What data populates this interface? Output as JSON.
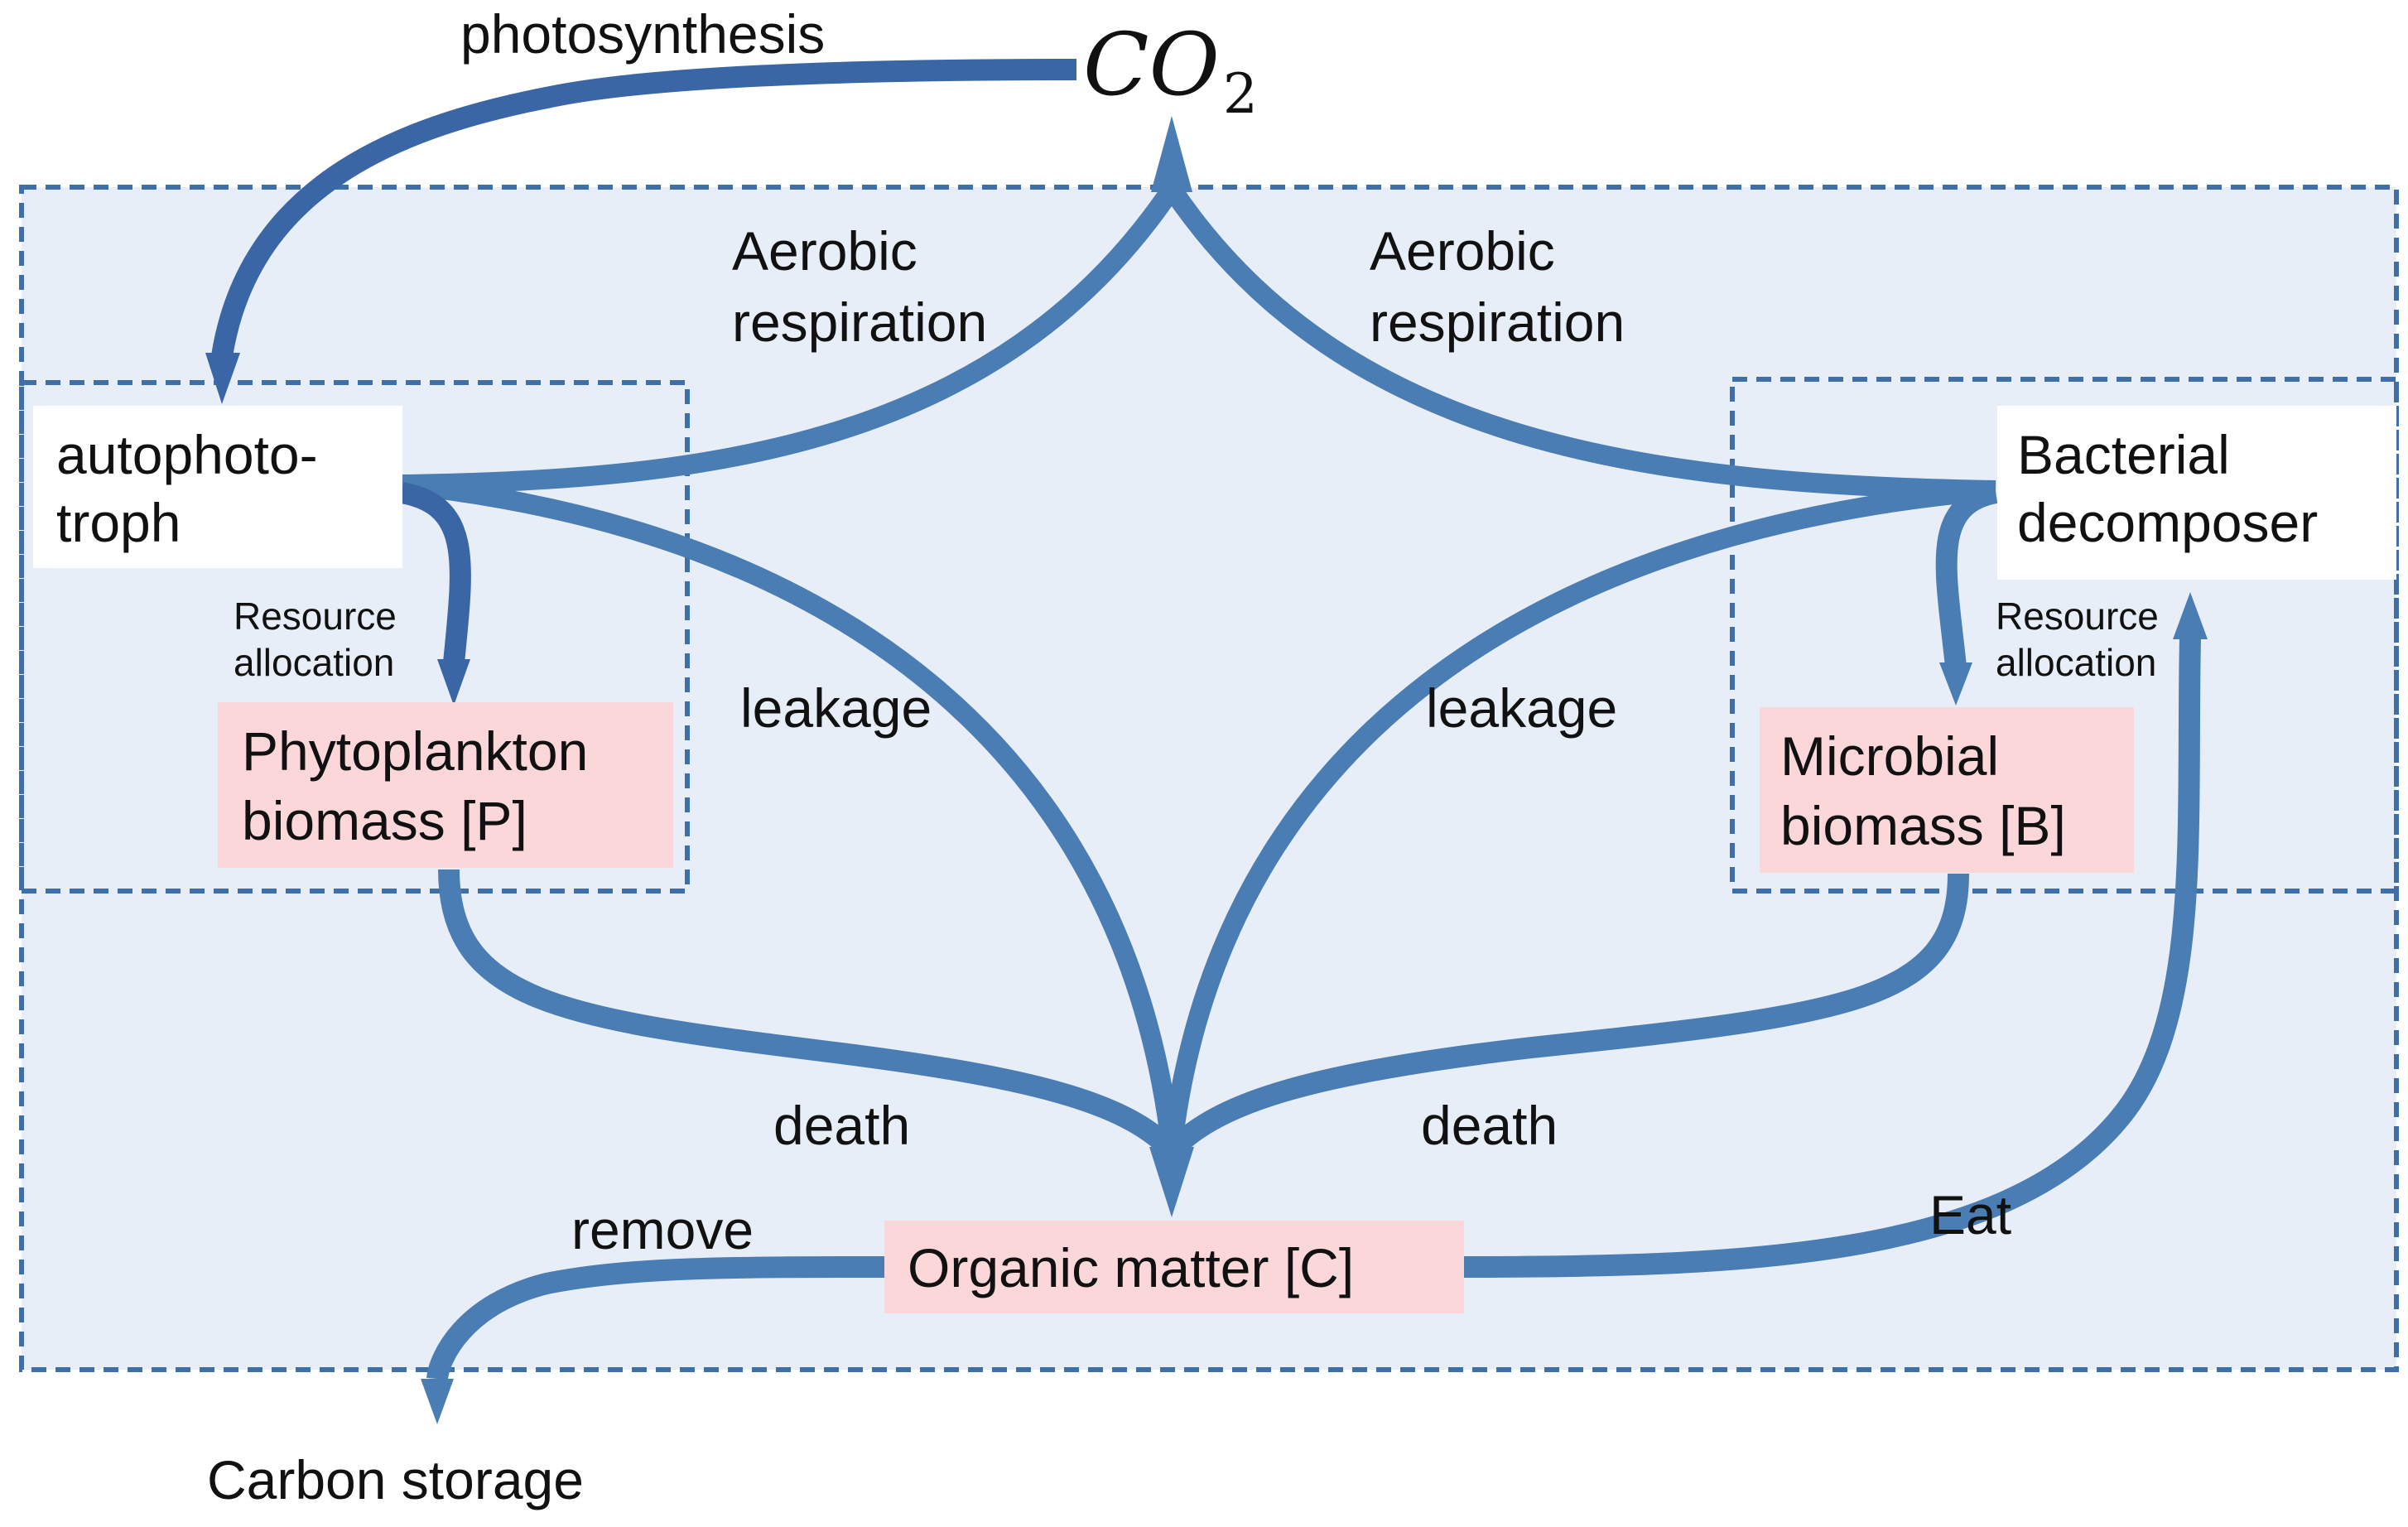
{
  "diagram": {
    "co2": {
      "base": "CO",
      "subscript": "2"
    },
    "flows": {
      "photosynthesis": "photosynthesis",
      "aerobic_left": [
        "Aerobic",
        "respiration"
      ],
      "aerobic_right": [
        "Aerobic",
        "respiration"
      ],
      "leakage_left": "leakage",
      "leakage_right": "leakage",
      "death_left": "death",
      "death_right": "death",
      "remove": "remove",
      "eat": "Eat",
      "resource_left": [
        "Resource",
        "allocation"
      ],
      "resource_right": [
        "Resource",
        "allocation"
      ]
    },
    "nodes": {
      "autophototroph": [
        "autophoto-",
        "troph"
      ],
      "bacterial": [
        "Bacterial",
        "decomposer"
      ],
      "phytoplankton": [
        "Phytoplankton",
        "biomass [P]"
      ],
      "microbial": [
        "Microbial",
        "biomass [B]"
      ],
      "organic": "Organic matter [C]",
      "carbon_storage": "Carbon storage"
    },
    "colors": {
      "flow": "#4a7db3",
      "flow_dark": "#3a66a6",
      "system_fill": "#e8eef8",
      "boundary": "#3f6fa8",
      "pool_fill": "#fcd7da",
      "organism_fill": "#ffffff"
    }
  }
}
